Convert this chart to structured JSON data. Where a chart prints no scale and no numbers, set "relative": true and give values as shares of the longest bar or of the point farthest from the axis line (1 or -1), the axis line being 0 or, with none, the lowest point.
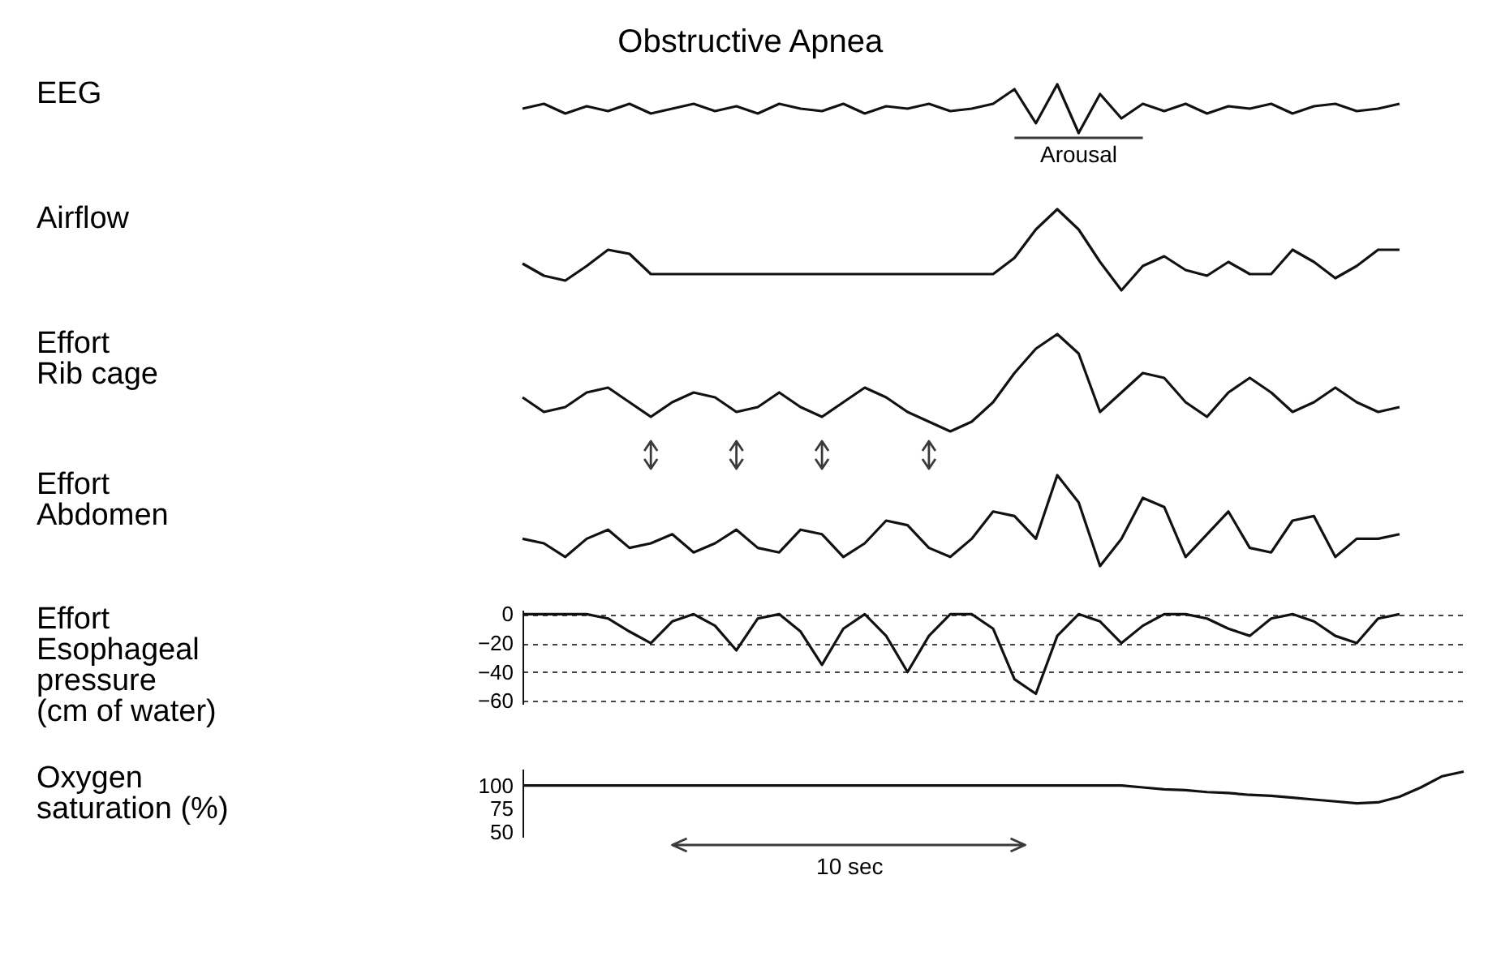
{
  "chart_data": [
    {
      "type": "line",
      "title": "Obstructive Apnea",
      "ylabel": "EEG",
      "relative": true,
      "color": "#111111",
      "annotations": [
        "Arousal"
      ],
      "categories": [
        null,
        null,
        null,
        null,
        null,
        null,
        null,
        null,
        null,
        null,
        null,
        null,
        null,
        null,
        null,
        null,
        null,
        null,
        null,
        null,
        null,
        null,
        null,
        null,
        null,
        null,
        null,
        null,
        null,
        null,
        null,
        null,
        null,
        null,
        null,
        null,
        null,
        null,
        null,
        null,
        null,
        null
      ],
      "values": [
        0.5,
        0.6,
        0.4,
        0.55,
        0.45,
        0.6,
        0.4,
        0.5,
        0.6,
        0.45,
        0.55,
        0.4,
        0.6,
        0.5,
        0.45,
        0.6,
        0.4,
        0.55,
        0.5,
        0.6,
        0.45,
        0.5,
        0.6,
        0.9,
        0.2,
        1,
        0,
        0.8,
        0.3,
        0.6,
        0.45,
        0.6,
        0.4,
        0.55,
        0.5,
        0.6,
        0.4,
        0.55,
        0.6,
        0.45,
        0.5,
        0.6
      ]
    },
    {
      "type": "line",
      "ylabel": "Airflow",
      "relative": true,
      "color": "#111111",
      "categories": [
        null,
        null,
        null,
        null,
        null,
        null,
        null,
        null,
        null,
        null,
        null,
        null,
        null,
        null,
        null,
        null,
        null,
        null,
        null,
        null,
        null,
        null,
        null,
        null,
        null,
        null,
        null,
        null,
        null,
        null,
        null,
        null,
        null,
        null,
        null,
        null,
        null,
        null,
        null,
        null,
        null,
        null
      ],
      "values": [
        0.33,
        0.18,
        0.12,
        0.3,
        0.5,
        0.45,
        0.2,
        0.2,
        0.2,
        0.2,
        0.2,
        0.2,
        0.2,
        0.2,
        0.2,
        0.2,
        0.2,
        0.2,
        0.2,
        0.2,
        0.2,
        0.2,
        0.2,
        0.4,
        0.75,
        1,
        0.75,
        0.35,
        0,
        0.3,
        0.42,
        0.25,
        0.18,
        0.35,
        0.2,
        0.2,
        0.5,
        0.35,
        0.15,
        0.3,
        0.5,
        0.5
      ]
    },
    {
      "type": "line",
      "ylabel": "Effort\nRib cage",
      "relative": true,
      "color": "#111111",
      "categories": [
        null,
        null,
        null,
        null,
        null,
        null,
        null,
        null,
        null,
        null,
        null,
        null,
        null,
        null,
        null,
        null,
        null,
        null,
        null,
        null,
        null,
        null,
        null,
        null,
        null,
        null,
        null,
        null,
        null,
        null,
        null,
        null,
        null,
        null,
        null,
        null,
        null,
        null,
        null,
        null,
        null,
        null
      ],
      "values": [
        0.35,
        0.2,
        0.25,
        0.4,
        0.45,
        0.3,
        0.15,
        0.3,
        0.4,
        0.35,
        0.2,
        0.25,
        0.4,
        0.25,
        0.15,
        0.3,
        0.45,
        0.35,
        0.2,
        0.1,
        0,
        0.1,
        0.3,
        0.6,
        0.85,
        1,
        0.8,
        0.2,
        0.4,
        0.6,
        0.55,
        0.3,
        0.15,
        0.4,
        0.55,
        0.4,
        0.2,
        0.3,
        0.45,
        0.3,
        0.2,
        0.25
      ]
    },
    {
      "type": "line",
      "ylabel": "Effort\nAbdomen",
      "relative": true,
      "color": "#111111",
      "categories": [
        null,
        null,
        null,
        null,
        null,
        null,
        null,
        null,
        null,
        null,
        null,
        null,
        null,
        null,
        null,
        null,
        null,
        null,
        null,
        null,
        null,
        null,
        null,
        null,
        null,
        null,
        null,
        null,
        null,
        null,
        null,
        null,
        null,
        null,
        null,
        null,
        null,
        null,
        null,
        null,
        null,
        null
      ],
      "values": [
        0.3,
        0.25,
        0.1,
        0.3,
        0.4,
        0.2,
        0.25,
        0.35,
        0.15,
        0.25,
        0.4,
        0.2,
        0.15,
        0.4,
        0.35,
        0.1,
        0.25,
        0.5,
        0.45,
        0.2,
        0.1,
        0.3,
        0.6,
        0.55,
        0.3,
        1,
        0.7,
        0,
        0.3,
        0.75,
        0.65,
        0.1,
        0.35,
        0.6,
        0.2,
        0.15,
        0.5,
        0.55,
        0.1,
        0.3,
        0.3,
        0.35
      ]
    },
    {
      "type": "line",
      "ylabel": "Effort\nEsophageal\npressure\n(cm of water)",
      "color": "#111111",
      "ylim": [
        -62,
        3
      ],
      "yticks": [
        0,
        -20,
        -40,
        -60
      ],
      "grid": "y",
      "tick_labels": "y",
      "categories": [
        null,
        null,
        null,
        null,
        null,
        null,
        null,
        null,
        null,
        null,
        null,
        null,
        null,
        null,
        null,
        null,
        null,
        null,
        null,
        null,
        null,
        null,
        null,
        null,
        null,
        null,
        null,
        null,
        null,
        null,
        null,
        null,
        null,
        null,
        null,
        null,
        null,
        null,
        null,
        null,
        null,
        null
      ],
      "values": [
        0,
        0,
        0,
        0,
        -3,
        -12,
        -20,
        -5,
        0,
        -8,
        -25,
        -3,
        0,
        -12,
        -35,
        -10,
        0,
        -15,
        -40,
        -15,
        0,
        0,
        -10,
        -45,
        -55,
        -15,
        0,
        -5,
        -20,
        -8,
        0,
        0,
        -3,
        -10,
        -15,
        -3,
        0,
        -5,
        -15,
        -20,
        -3,
        0
      ]
    },
    {
      "type": "line",
      "ylabel": "Oxygen\nsaturation (%)",
      "color": "#111111",
      "ylim": [
        45,
        118
      ],
      "yticks": [
        100,
        75,
        50
      ],
      "tick_labels": "y",
      "annotations": [
        "10 sec"
      ],
      "categories": [
        null,
        null,
        null,
        null,
        null,
        null,
        null,
        null,
        null,
        null,
        null,
        null,
        null,
        null,
        null,
        null,
        null,
        null,
        null,
        null,
        null,
        null,
        null,
        null,
        null,
        null,
        null,
        null,
        null,
        null,
        null,
        null,
        null,
        null,
        null,
        null,
        null,
        null,
        null,
        null,
        null,
        null,
        null,
        null,
        null
      ],
      "values": [
        100,
        100,
        100,
        100,
        100,
        100,
        100,
        100,
        100,
        100,
        100,
        100,
        100,
        100,
        100,
        100,
        100,
        100,
        100,
        100,
        100,
        100,
        100,
        100,
        100,
        100,
        100,
        100,
        100,
        98,
        96,
        95,
        93,
        92,
        90,
        89,
        87,
        85,
        83,
        81,
        82,
        88,
        98,
        110,
        115
      ]
    }
  ]
}
